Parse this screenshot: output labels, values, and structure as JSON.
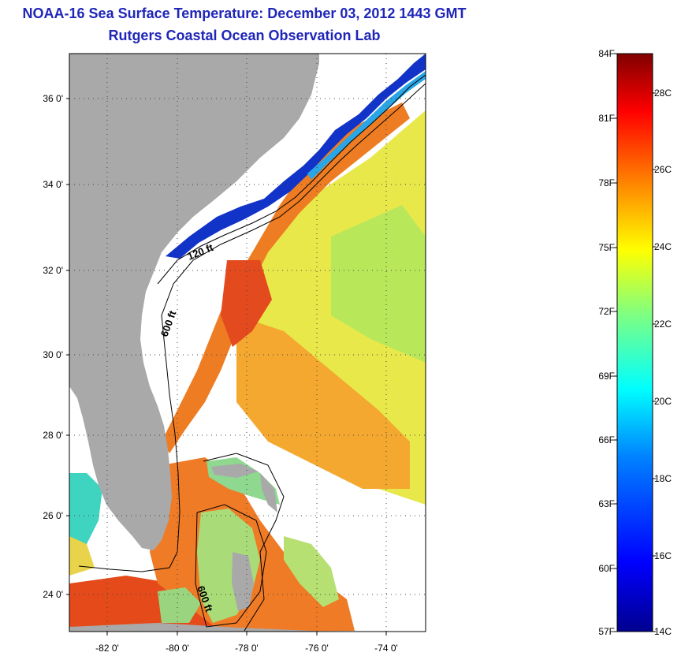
{
  "header": {
    "title": "NOAA-16 Sea Surface Temperature:  December 03, 2012 1443 GMT",
    "subtitle": "Rutgers Coastal Ocean Observation Lab"
  },
  "map": {
    "lat_labels": [
      "36 0'",
      "34 0'",
      "32 0'",
      "30 0'",
      "28 0'",
      "26 0'",
      "24 0'"
    ],
    "lon_labels": [
      "-82 0'",
      "-80 0'",
      "-78 0'",
      "-76 0'",
      "-74 0'"
    ],
    "contour_labels": [
      "120 ft",
      "600 ft",
      "600 ft"
    ],
    "colors": {
      "land": "#a9a9a9",
      "cloud": "#ffffff"
    }
  },
  "colorbar": {
    "fahrenheit_labels": [
      "84F",
      "81F",
      "78F",
      "75F",
      "72F",
      "69F",
      "66F",
      "63F",
      "60F",
      "57F"
    ],
    "celsius_labels": [
      "28C",
      "26C",
      "24C",
      "22C",
      "20C",
      "18C",
      "16C",
      "14C"
    ],
    "scale_colors": [
      "#00008f",
      "#0000ff",
      "#0080ff",
      "#00ffff",
      "#80ff80",
      "#ffff00",
      "#ff8000",
      "#ff0000",
      "#800000"
    ]
  }
}
